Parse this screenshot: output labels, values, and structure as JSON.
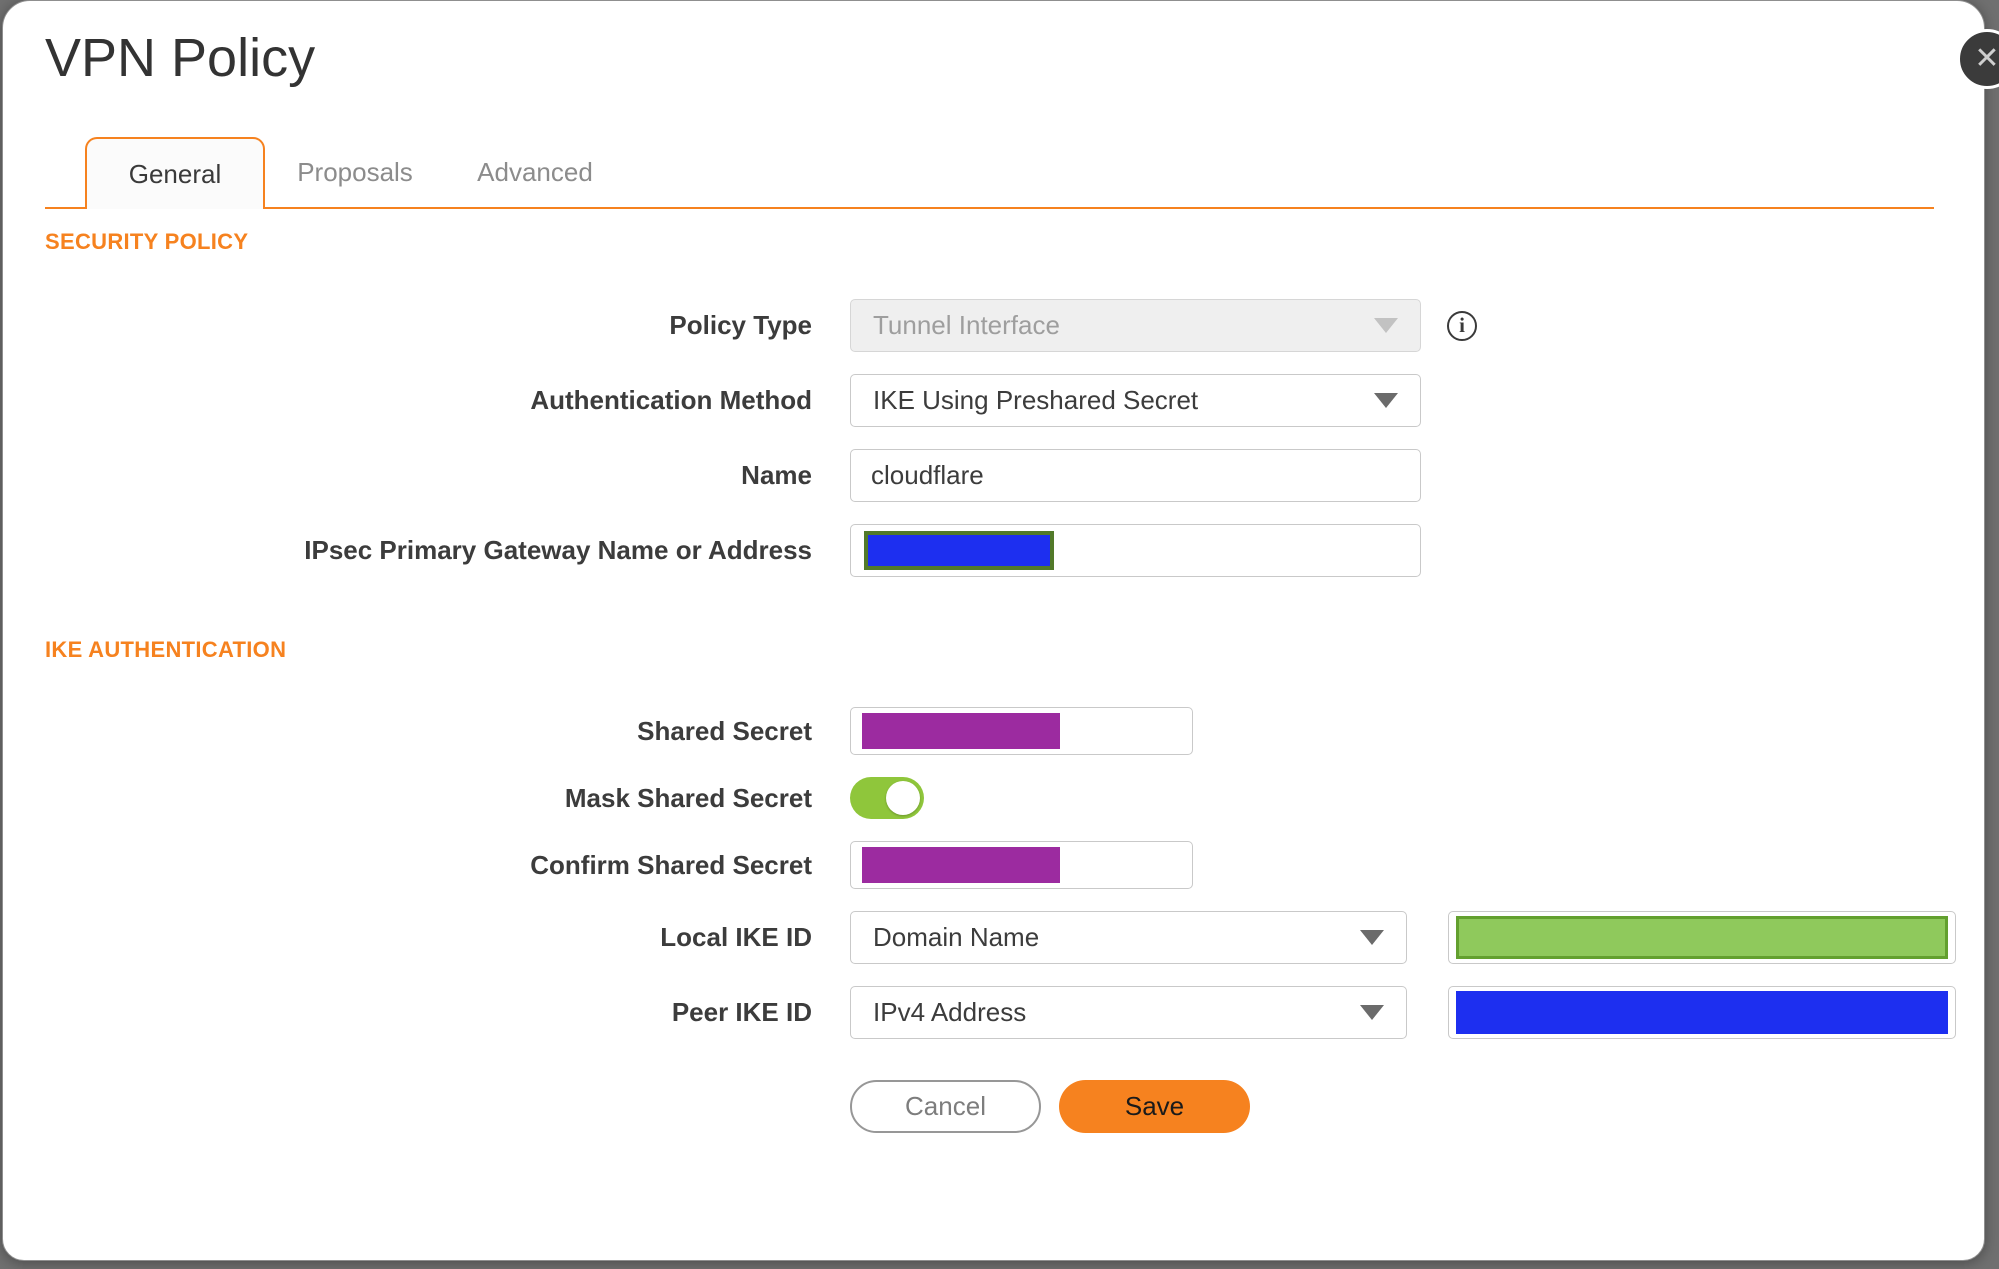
{
  "dialog": {
    "title": "VPN Policy"
  },
  "icons": {
    "close": "✕",
    "info": "i"
  },
  "tabs": [
    {
      "label": "General",
      "active": true
    },
    {
      "label": "Proposals",
      "active": false
    },
    {
      "label": "Advanced",
      "active": false
    }
  ],
  "sections": {
    "security_policy": {
      "header": "SECURITY POLICY"
    },
    "ike_authentication": {
      "header": "IKE AUTHENTICATION"
    }
  },
  "fields": {
    "policy_type": {
      "label": "Policy Type",
      "value": "Tunnel Interface",
      "disabled": true
    },
    "authentication_method": {
      "label": "Authentication Method",
      "value": "IKE Using Preshared Secret"
    },
    "name": {
      "label": "Name",
      "value": "cloudflare"
    },
    "gateway": {
      "label": "IPsec Primary Gateway Name or Address",
      "value_redacted": true
    },
    "shared_secret": {
      "label": "Shared Secret",
      "value_redacted": true
    },
    "mask_shared_secret": {
      "label": "Mask Shared Secret",
      "state": "on"
    },
    "confirm_shared_secret": {
      "label": "Confirm Shared Secret",
      "value_redacted": true
    },
    "local_ike_id": {
      "label": "Local IKE ID",
      "type_value": "Domain Name",
      "value_redacted": true
    },
    "peer_ike_id": {
      "label": "Peer IKE ID",
      "type_value": "IPv4 Address",
      "value_redacted": true
    }
  },
  "buttons": {
    "cancel": "Cancel",
    "save": "Save"
  },
  "colors": {
    "accent_orange": "#F6821F",
    "toggle_green": "#8FC63B",
    "redaction_purple": "#9C2BA0",
    "redaction_blue": "#1D2FF0",
    "redaction_green_fill": "#8FC95C",
    "redaction_green_border": "#63A02F",
    "redaction_olive_border": "#527A2A",
    "backdrop_gray": "#707070"
  }
}
